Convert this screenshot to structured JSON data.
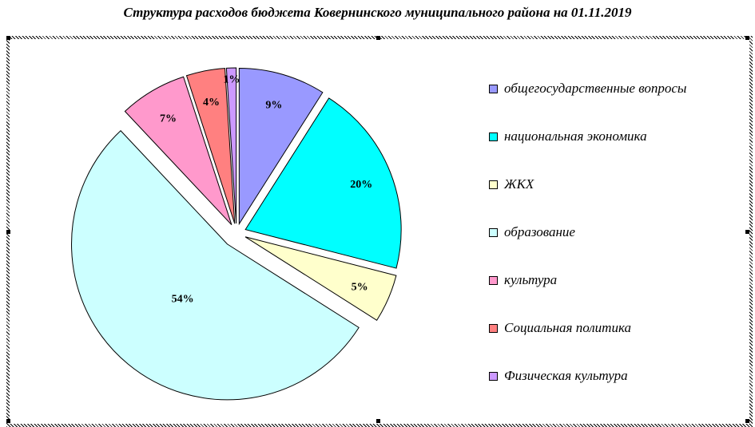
{
  "chart_data": {
    "type": "pie",
    "title": "Структура расходов бюджета Ковернинского муниципального района на 01.11.2019",
    "exploded": true,
    "legend_position": "right",
    "series": [
      {
        "name": "общегосударственные вопросы",
        "value": 9,
        "label": "9%",
        "color": "#9999ff"
      },
      {
        "name": "национальная экономика",
        "value": 20,
        "label": "20%",
        "color": "#00ffff"
      },
      {
        "name": "ЖКХ",
        "value": 5,
        "label": "5%",
        "color": "#ffffcc"
      },
      {
        "name": "образование",
        "value": 54,
        "label": "54%",
        "color": "#ccffff"
      },
      {
        "name": "культура",
        "value": 7,
        "label": "7%",
        "color": "#ff99cc"
      },
      {
        "name": "Социальная политика",
        "value": 4,
        "label": "4%",
        "color": "#ff8080"
      },
      {
        "name": "Физическая культура",
        "value": 1,
        "label": "1%",
        "color": "#cc99ff"
      }
    ]
  }
}
